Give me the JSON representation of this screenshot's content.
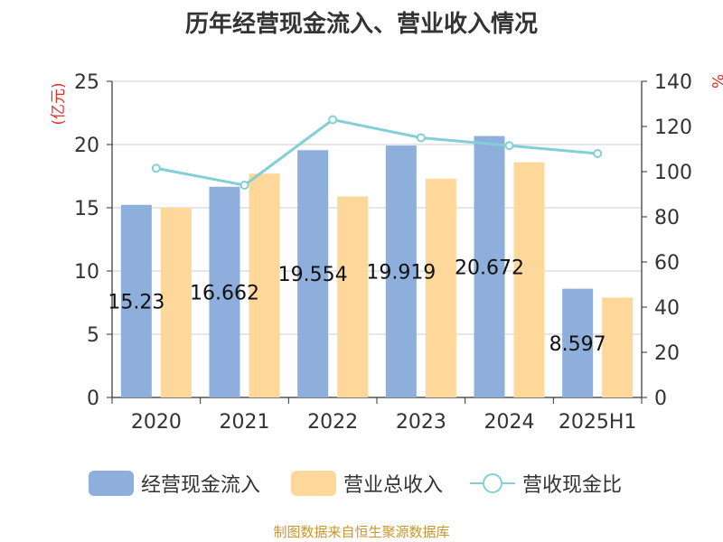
{
  "title": "历年经营现金流入、营业收入情况",
  "source": "制图数据来自恒生聚源数据库",
  "colors": {
    "series1": "#8eaedb",
    "series2": "#fdd89a",
    "series3": "#82cfd6",
    "axis_label": "#e1302b",
    "grid": "#cccccc",
    "axis": "#333333",
    "text": "#333333"
  },
  "chart_data": {
    "type": "bar",
    "categories": [
      "2020",
      "2021",
      "2022",
      "2023",
      "2024",
      "2025H1"
    ],
    "ylabel": "(亿元)",
    "y2label": "%",
    "ylim": [
      0,
      25
    ],
    "y2lim": [
      0,
      140
    ],
    "yticks": [
      0,
      5,
      10,
      15,
      20,
      25
    ],
    "y2ticks": [
      0,
      20,
      40,
      60,
      80,
      100,
      120,
      140
    ],
    "grid": true,
    "legend_position": "bottom",
    "series": [
      {
        "name": "经营现金流入",
        "type": "bar",
        "axis": "left",
        "values": [
          15.23,
          16.662,
          19.554,
          19.919,
          20.672,
          8.597
        ],
        "labels": [
          "15.23",
          "16.662",
          "19.554",
          "19.919",
          "20.672",
          "8.597"
        ]
      },
      {
        "name": "营业总收入",
        "type": "bar",
        "axis": "left",
        "values": [
          15.0,
          17.7,
          15.9,
          17.3,
          18.6,
          7.9
        ]
      },
      {
        "name": "营收现金比",
        "type": "line",
        "axis": "right",
        "values": [
          101.5,
          94,
          123,
          115,
          111.5,
          108
        ]
      }
    ]
  }
}
